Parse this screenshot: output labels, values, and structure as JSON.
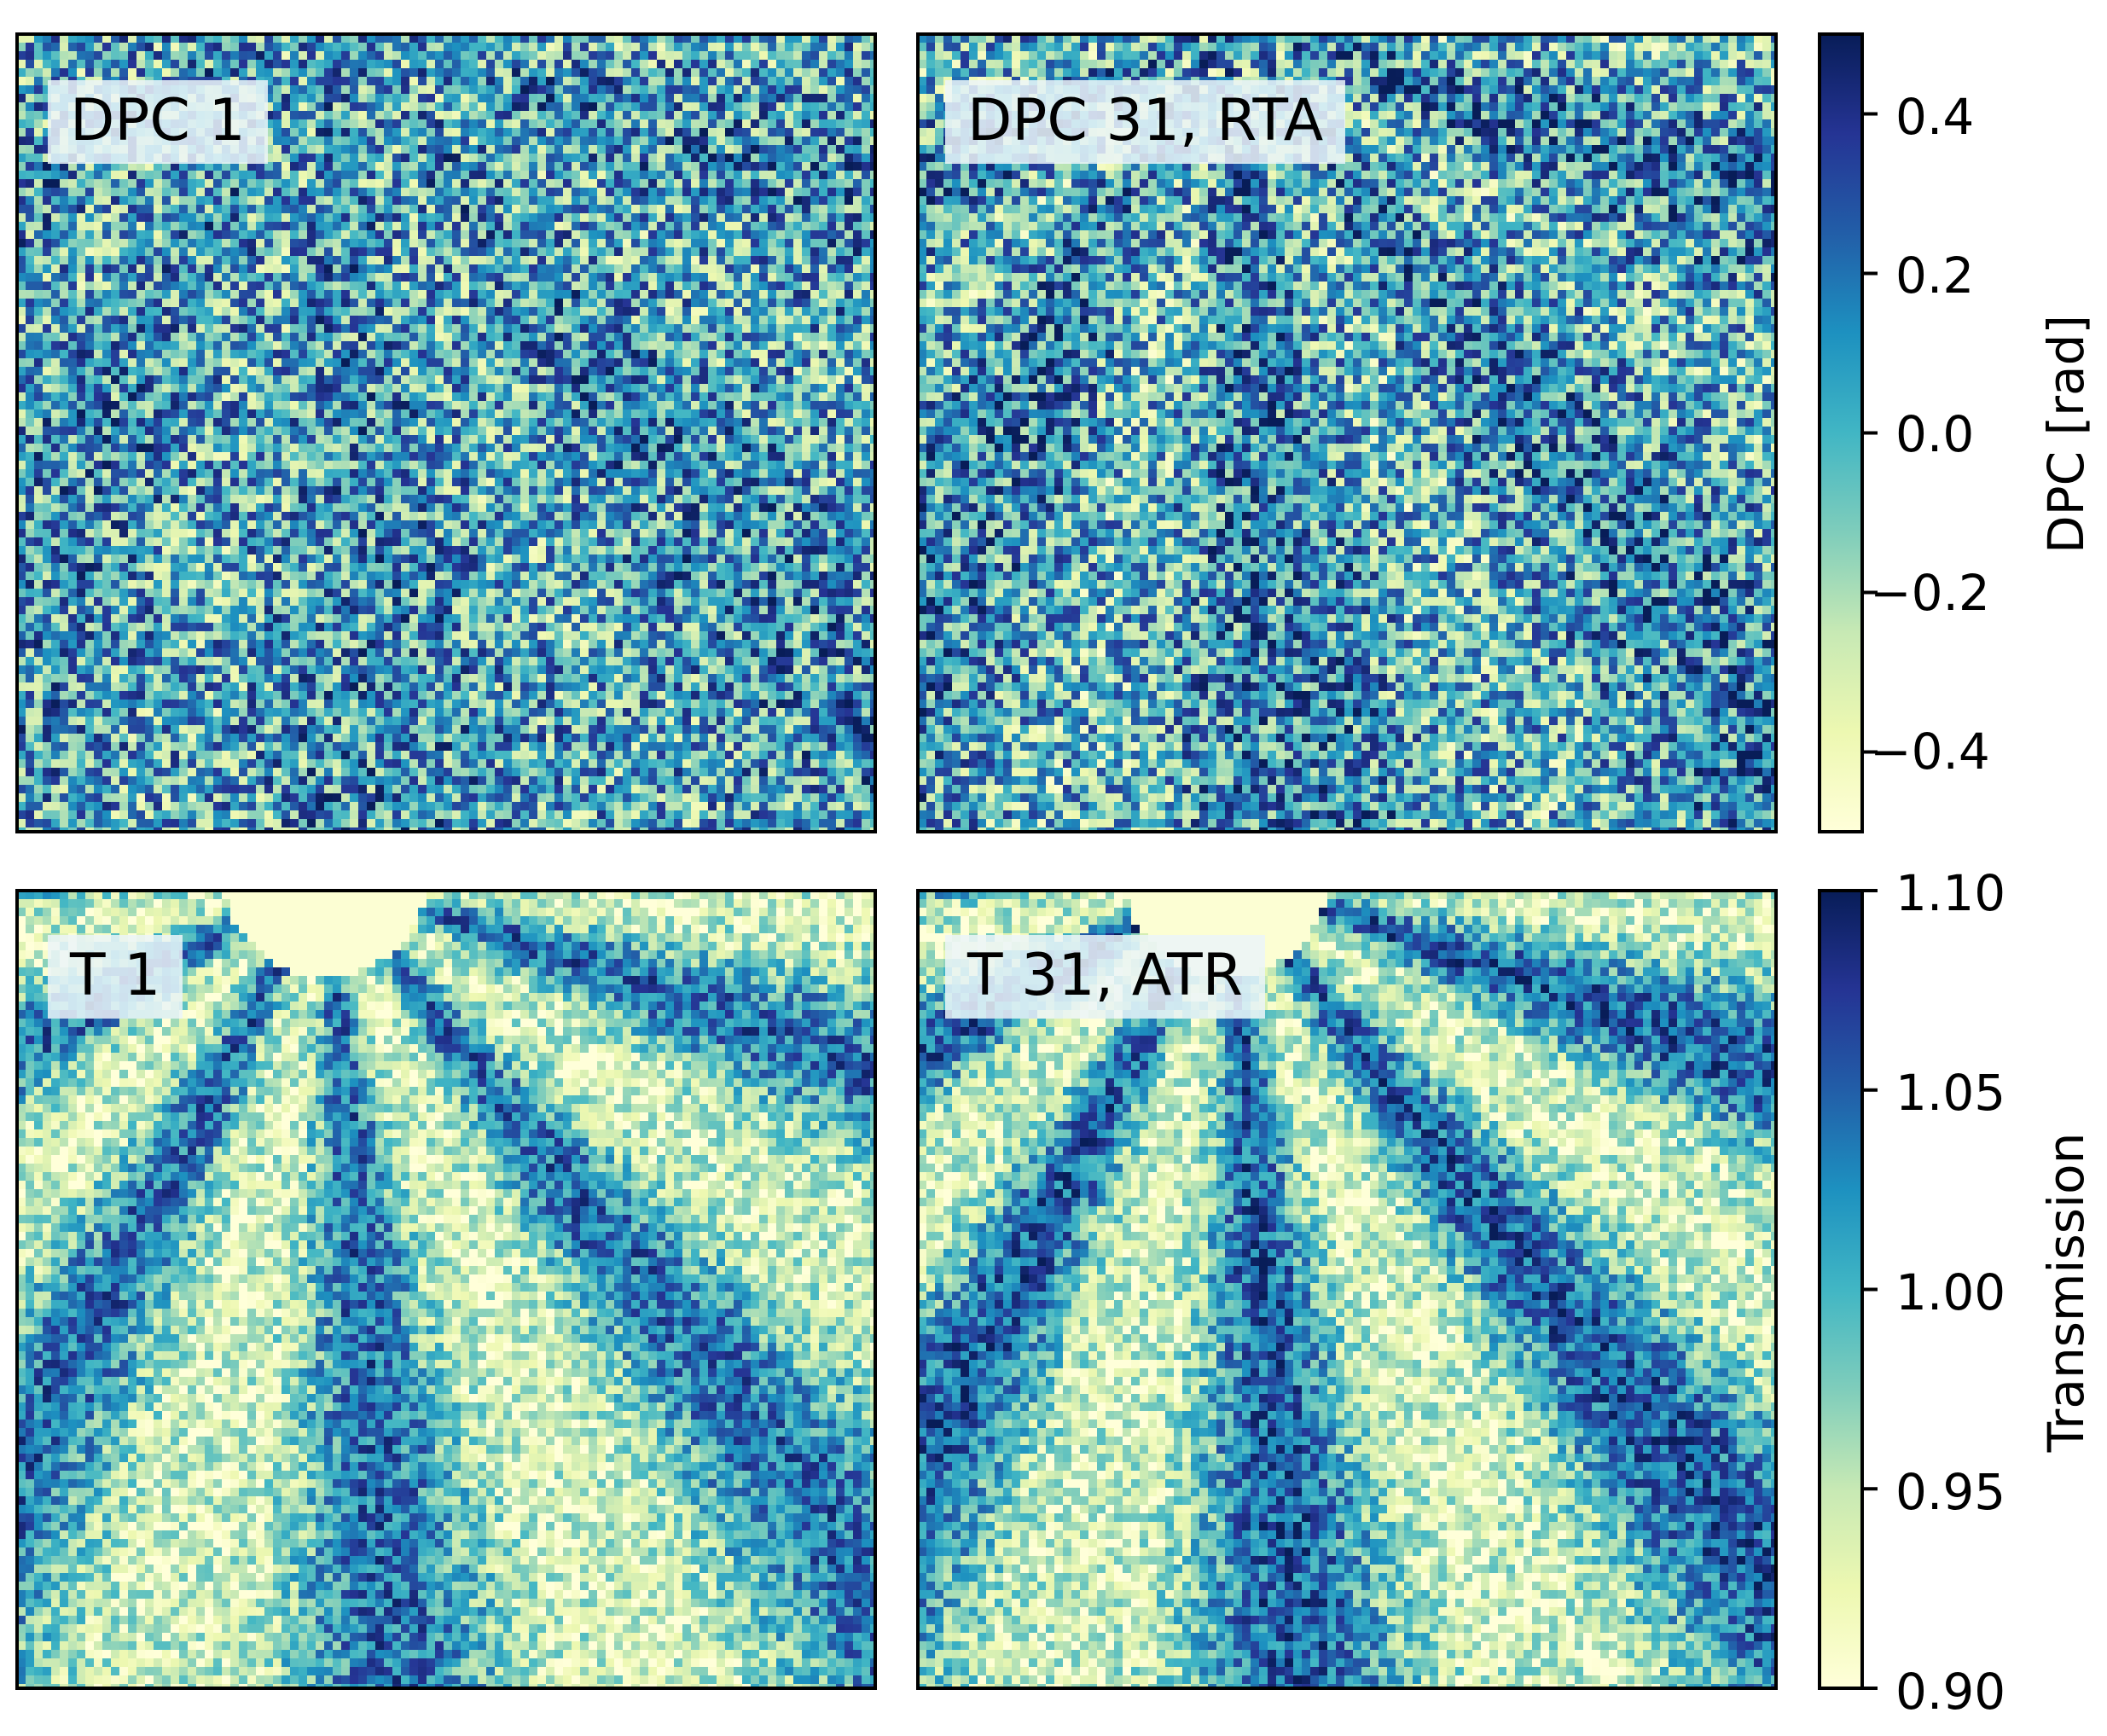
{
  "panels": [
    {
      "id": "dpc1",
      "label": "DPC 1",
      "kind": "dpc",
      "contrast": 0.35
    },
    {
      "id": "dpc31",
      "label": "DPC 31, RTA",
      "kind": "dpc",
      "contrast": 0.75
    },
    {
      "id": "t1",
      "label": "T 1",
      "kind": "transmission",
      "contrast": 0.85
    },
    {
      "id": "t31",
      "label": "T 31, ATR",
      "kind": "transmission",
      "contrast": 0.95
    }
  ],
  "colorbars": {
    "dpc": {
      "title": "DPC [rad]",
      "range": [
        -0.5,
        0.5
      ],
      "ticks": [
        "0.4",
        "0.2",
        "0.0",
        "−0.2",
        "−0.4"
      ],
      "tick_values": [
        0.4,
        0.2,
        0.0,
        -0.2,
        -0.4
      ]
    },
    "transmission": {
      "title": "Transmission",
      "range": [
        0.9,
        1.1
      ],
      "ticks": [
        "1.10",
        "1.05",
        "1.00",
        "0.95",
        "0.90"
      ],
      "tick_values": [
        1.1,
        1.05,
        1.0,
        0.95,
        0.9
      ]
    }
  },
  "colormap": "YlGnBu",
  "colormap_stops": [
    "#ffffd9",
    "#edf8b1",
    "#c7e9b4",
    "#7fcdbb",
    "#41b6c4",
    "#1d91c0",
    "#225ea8",
    "#253494",
    "#081d58"
  ]
}
